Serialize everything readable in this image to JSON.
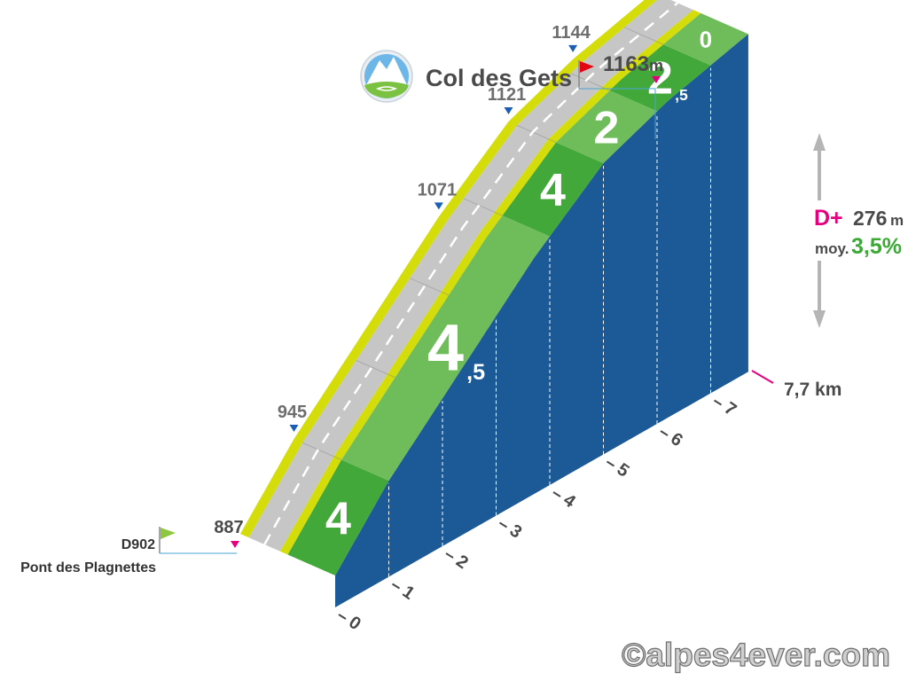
{
  "chart_data": {
    "type": "area",
    "x_unit": "km",
    "y_unit": "m",
    "summit": {
      "name": "Col des Gets",
      "altitude": "1163",
      "unit": "m"
    },
    "start": {
      "road": "D902",
      "place": "Pont des Plagnettes",
      "altitude": "887"
    },
    "distance_label": "7,7 km",
    "gain": {
      "label": "D+",
      "value": "276",
      "unit": "m"
    },
    "average": {
      "label": "moy.",
      "value": "3,5%"
    },
    "x_ticks": [
      "0",
      "1",
      "2",
      "3",
      "4",
      "5",
      "6",
      "7"
    ],
    "distance_max": 7.7,
    "profile": [
      {
        "x": 0.0,
        "y": 887
      },
      {
        "x": 1.0,
        "y": 945
      },
      {
        "x": 3.7,
        "y": 1071
      },
      {
        "x": 5.0,
        "y": 1121
      },
      {
        "x": 6.2,
        "y": 1144
      },
      {
        "x": 7.7,
        "y": 1163
      }
    ],
    "altitude_labels": [
      "945",
      "1071",
      "1121",
      "1144",
      "1163"
    ],
    "segments": [
      {
        "from": 0,
        "to": 1,
        "gradient": 4,
        "label_main": "4",
        "label_sub": ""
      },
      {
        "from": 1,
        "to": 4,
        "gradient": 4.5,
        "label_main": "4",
        "label_sub": "5"
      },
      {
        "from": 4,
        "to": 5,
        "gradient": 4,
        "label_main": "4",
        "label_sub": ""
      },
      {
        "from": 5,
        "to": 6,
        "gradient": 2,
        "label_main": "2",
        "label_sub": ""
      },
      {
        "from": 6,
        "to": 7,
        "gradient": 2.5,
        "label_main": "2",
        "label_sub": "5"
      },
      {
        "from": 7,
        "to": 7.7,
        "gradient": 0,
        "label_main": "0",
        "label_sub": ""
      }
    ]
  },
  "watermark": "©alpes4ever.com",
  "colors": {
    "front": "#1b5a96",
    "green": "#43a83a",
    "green_light": "#6fbc5a",
    "road": "#c6c6c6",
    "curb": "#d4dc0a",
    "label": "#6e6e6e",
    "marker_blue": "#1a5fb4",
    "marker_pink": "#e6007e",
    "flag_red": "#e30613",
    "flag_green": "#8dc63f",
    "avg_green": "#3aaa35",
    "leader": "#4aa3d6"
  }
}
